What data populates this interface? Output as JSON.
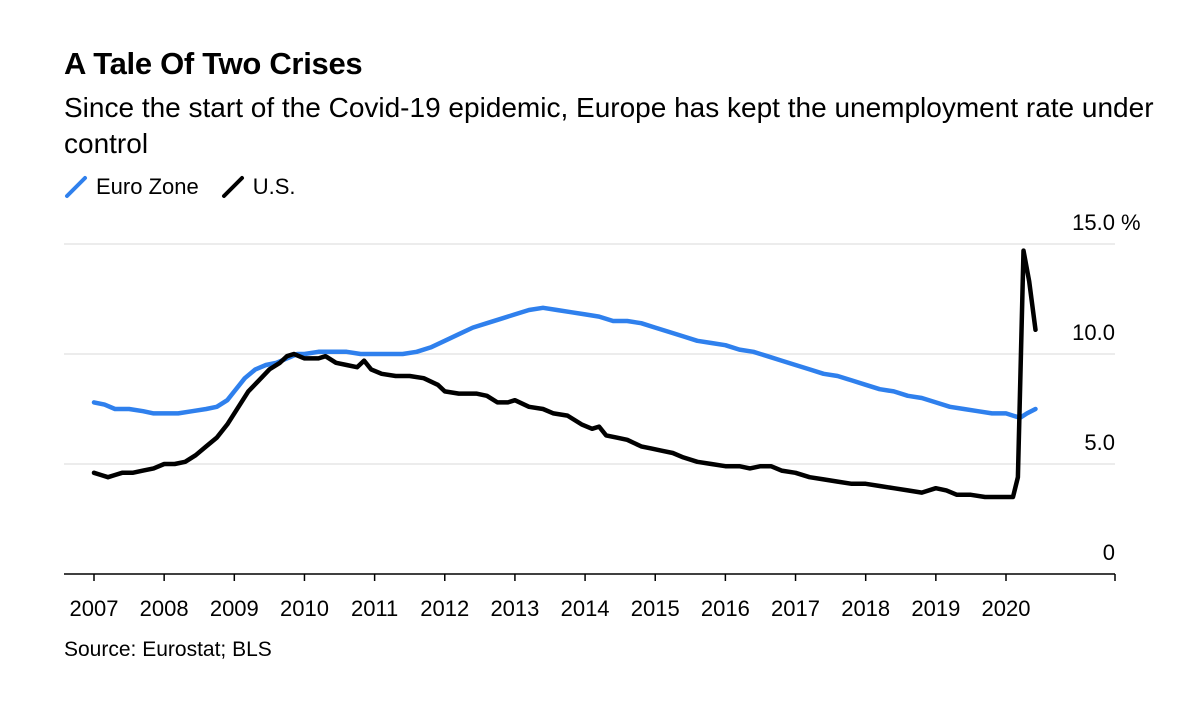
{
  "header": {
    "title": "A Tale Of Two Crises",
    "subtitle": "Since the start of the Covid-19 epidemic, Europe has kept the unemployment rate under control"
  },
  "legend": [
    {
      "label": "Euro Zone",
      "color": "#2f80ed"
    },
    {
      "label": "U.S.",
      "color": "#000000"
    }
  ],
  "footer": {
    "source": "Source: Eurostat; BLS"
  },
  "chart_data": {
    "type": "line",
    "title": "A Tale Of Two Crises",
    "xlabel": "",
    "ylabel": "%",
    "unit_label": "%",
    "xlim": [
      2006.6,
      2021.6
    ],
    "ylim": [
      0,
      15
    ],
    "grid": true,
    "legend_position": "top-left",
    "y_ticks": [
      {
        "value": 0,
        "label": "0"
      },
      {
        "value": 5,
        "label": "5.0"
      },
      {
        "value": 10,
        "label": "10.0"
      },
      {
        "value": 15,
        "label": "15.0"
      }
    ],
    "x_ticks": [
      {
        "value": 2007,
        "label": "2007"
      },
      {
        "value": 2008,
        "label": "2008"
      },
      {
        "value": 2009,
        "label": "2009"
      },
      {
        "value": 2010,
        "label": "2010"
      },
      {
        "value": 2011,
        "label": "2011"
      },
      {
        "value": 2012,
        "label": "2012"
      },
      {
        "value": 2013,
        "label": "2013"
      },
      {
        "value": 2014,
        "label": "2014"
      },
      {
        "value": 2015,
        "label": "2015"
      },
      {
        "value": 2016,
        "label": "2016"
      },
      {
        "value": 2017,
        "label": "2017"
      },
      {
        "value": 2018,
        "label": "2018"
      },
      {
        "value": 2019,
        "label": "2019"
      },
      {
        "value": 2020,
        "label": "2020"
      }
    ],
    "series": [
      {
        "name": "Euro Zone",
        "color": "#2f80ed",
        "points": [
          [
            2007.0,
            7.8
          ],
          [
            2007.15,
            7.7
          ],
          [
            2007.3,
            7.5
          ],
          [
            2007.5,
            7.5
          ],
          [
            2007.7,
            7.4
          ],
          [
            2007.85,
            7.3
          ],
          [
            2008.0,
            7.3
          ],
          [
            2008.2,
            7.3
          ],
          [
            2008.4,
            7.4
          ],
          [
            2008.6,
            7.5
          ],
          [
            2008.75,
            7.6
          ],
          [
            2008.9,
            7.9
          ],
          [
            2009.0,
            8.3
          ],
          [
            2009.15,
            8.9
          ],
          [
            2009.3,
            9.3
          ],
          [
            2009.45,
            9.5
          ],
          [
            2009.6,
            9.6
          ],
          [
            2009.75,
            9.8
          ],
          [
            2009.9,
            10.0
          ],
          [
            2010.0,
            10.0
          ],
          [
            2010.2,
            10.1
          ],
          [
            2010.4,
            10.1
          ],
          [
            2010.6,
            10.1
          ],
          [
            2010.8,
            10.0
          ],
          [
            2011.0,
            10.0
          ],
          [
            2011.2,
            10.0
          ],
          [
            2011.4,
            10.0
          ],
          [
            2011.6,
            10.1
          ],
          [
            2011.8,
            10.3
          ],
          [
            2012.0,
            10.6
          ],
          [
            2012.2,
            10.9
          ],
          [
            2012.4,
            11.2
          ],
          [
            2012.6,
            11.4
          ],
          [
            2012.8,
            11.6
          ],
          [
            2013.0,
            11.8
          ],
          [
            2013.2,
            12.0
          ],
          [
            2013.4,
            12.1
          ],
          [
            2013.6,
            12.0
          ],
          [
            2013.8,
            11.9
          ],
          [
            2014.0,
            11.8
          ],
          [
            2014.2,
            11.7
          ],
          [
            2014.4,
            11.5
          ],
          [
            2014.6,
            11.5
          ],
          [
            2014.8,
            11.4
          ],
          [
            2015.0,
            11.2
          ],
          [
            2015.2,
            11.0
          ],
          [
            2015.4,
            10.8
          ],
          [
            2015.6,
            10.6
          ],
          [
            2015.8,
            10.5
          ],
          [
            2016.0,
            10.4
          ],
          [
            2016.2,
            10.2
          ],
          [
            2016.4,
            10.1
          ],
          [
            2016.6,
            9.9
          ],
          [
            2016.8,
            9.7
          ],
          [
            2017.0,
            9.5
          ],
          [
            2017.2,
            9.3
          ],
          [
            2017.4,
            9.1
          ],
          [
            2017.6,
            9.0
          ],
          [
            2017.8,
            8.8
          ],
          [
            2018.0,
            8.6
          ],
          [
            2018.2,
            8.4
          ],
          [
            2018.4,
            8.3
          ],
          [
            2018.6,
            8.1
          ],
          [
            2018.8,
            8.0
          ],
          [
            2019.0,
            7.8
          ],
          [
            2019.2,
            7.6
          ],
          [
            2019.4,
            7.5
          ],
          [
            2019.6,
            7.4
          ],
          [
            2019.8,
            7.3
          ],
          [
            2020.0,
            7.3
          ],
          [
            2020.1,
            7.2
          ],
          [
            2020.2,
            7.1
          ],
          [
            2020.3,
            7.3
          ],
          [
            2020.42,
            7.5
          ]
        ]
      },
      {
        "name": "U.S.",
        "color": "#000000",
        "points": [
          [
            2007.0,
            4.6
          ],
          [
            2007.1,
            4.5
          ],
          [
            2007.2,
            4.4
          ],
          [
            2007.3,
            4.5
          ],
          [
            2007.4,
            4.6
          ],
          [
            2007.55,
            4.6
          ],
          [
            2007.7,
            4.7
          ],
          [
            2007.85,
            4.8
          ],
          [
            2008.0,
            5.0
          ],
          [
            2008.15,
            5.0
          ],
          [
            2008.3,
            5.1
          ],
          [
            2008.45,
            5.4
          ],
          [
            2008.6,
            5.8
          ],
          [
            2008.75,
            6.2
          ],
          [
            2008.9,
            6.8
          ],
          [
            2009.0,
            7.3
          ],
          [
            2009.1,
            7.8
          ],
          [
            2009.2,
            8.3
          ],
          [
            2009.35,
            8.8
          ],
          [
            2009.5,
            9.3
          ],
          [
            2009.65,
            9.6
          ],
          [
            2009.75,
            9.9
          ],
          [
            2009.85,
            10.0
          ],
          [
            2010.0,
            9.8
          ],
          [
            2010.2,
            9.8
          ],
          [
            2010.3,
            9.9
          ],
          [
            2010.45,
            9.6
          ],
          [
            2010.6,
            9.5
          ],
          [
            2010.75,
            9.4
          ],
          [
            2010.85,
            9.7
          ],
          [
            2010.95,
            9.3
          ],
          [
            2011.1,
            9.1
          ],
          [
            2011.3,
            9.0
          ],
          [
            2011.5,
            9.0
          ],
          [
            2011.7,
            8.9
          ],
          [
            2011.9,
            8.6
          ],
          [
            2012.0,
            8.3
          ],
          [
            2012.2,
            8.2
          ],
          [
            2012.45,
            8.2
          ],
          [
            2012.6,
            8.1
          ],
          [
            2012.75,
            7.8
          ],
          [
            2012.9,
            7.8
          ],
          [
            2013.0,
            7.9
          ],
          [
            2013.2,
            7.6
          ],
          [
            2013.4,
            7.5
          ],
          [
            2013.55,
            7.3
          ],
          [
            2013.75,
            7.2
          ],
          [
            2013.95,
            6.8
          ],
          [
            2014.1,
            6.6
          ],
          [
            2014.2,
            6.7
          ],
          [
            2014.3,
            6.3
          ],
          [
            2014.45,
            6.2
          ],
          [
            2014.6,
            6.1
          ],
          [
            2014.8,
            5.8
          ],
          [
            2014.95,
            5.7
          ],
          [
            2015.1,
            5.6
          ],
          [
            2015.25,
            5.5
          ],
          [
            2015.4,
            5.3
          ],
          [
            2015.6,
            5.1
          ],
          [
            2015.8,
            5.0
          ],
          [
            2016.0,
            4.9
          ],
          [
            2016.2,
            4.9
          ],
          [
            2016.35,
            4.8
          ],
          [
            2016.5,
            4.9
          ],
          [
            2016.65,
            4.9
          ],
          [
            2016.8,
            4.7
          ],
          [
            2017.0,
            4.6
          ],
          [
            2017.2,
            4.4
          ],
          [
            2017.4,
            4.3
          ],
          [
            2017.6,
            4.2
          ],
          [
            2017.8,
            4.1
          ],
          [
            2018.0,
            4.1
          ],
          [
            2018.2,
            4.0
          ],
          [
            2018.4,
            3.9
          ],
          [
            2018.6,
            3.8
          ],
          [
            2018.8,
            3.7
          ],
          [
            2019.0,
            3.9
          ],
          [
            2019.15,
            3.8
          ],
          [
            2019.3,
            3.6
          ],
          [
            2019.5,
            3.6
          ],
          [
            2019.7,
            3.5
          ],
          [
            2019.9,
            3.5
          ],
          [
            2020.1,
            3.5
          ],
          [
            2020.17,
            4.4
          ],
          [
            2020.25,
            14.7
          ],
          [
            2020.33,
            13.3
          ],
          [
            2020.42,
            11.1
          ]
        ]
      }
    ]
  }
}
